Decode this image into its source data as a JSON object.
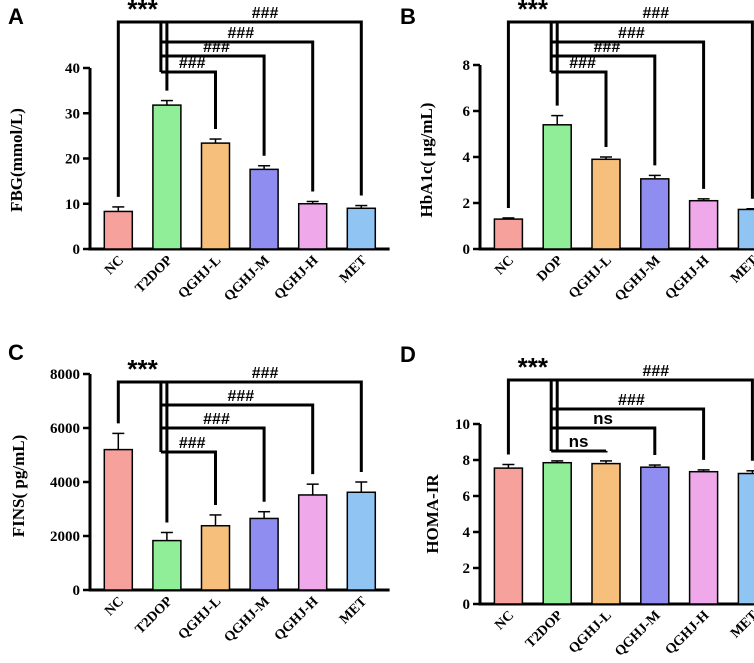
{
  "colors": {
    "NC": "#f6a19c",
    "T2DOP": "#90ee98",
    "QGHJ-L": "#f7bf7c",
    "QGHJ-M": "#8f8ef0",
    "QGHJ-H": "#efa8ea",
    "MET": "#90c4f3",
    "axis": "#000000"
  },
  "chart_data": [
    {
      "panel": "A",
      "type": "bar",
      "ylabel": "FBG(mmol/L)",
      "ylim": [
        0,
        40
      ],
      "yticks": [
        0,
        10,
        20,
        30,
        40
      ],
      "categories": [
        "NC",
        "T2DOP",
        "QGHJ-L",
        "QGHJ-M",
        "QGHJ-H",
        "MET"
      ],
      "values": [
        8.3,
        31.8,
        23.4,
        17.6,
        10.0,
        9.0
      ],
      "errors": [
        1.0,
        1.0,
        0.9,
        0.8,
        0.5,
        0.6
      ],
      "annotations": [
        {
          "text": "***",
          "from": 0,
          "to": 1
        },
        {
          "text": "###",
          "from": 1,
          "to": 2
        },
        {
          "text": "###",
          "from": 1,
          "to": 3
        },
        {
          "text": "###",
          "from": 1,
          "to": 4
        },
        {
          "text": "###",
          "from": 1,
          "to": 5
        }
      ]
    },
    {
      "panel": "B",
      "type": "bar",
      "ylabel": "HbA1c( μg/mL)",
      "ylim": [
        0,
        8
      ],
      "yticks": [
        0,
        2,
        4,
        6,
        8
      ],
      "categories": [
        "NC",
        "DOP",
        "QGHJ-L",
        "QGHJ-M",
        "QGHJ-H",
        "MET"
      ],
      "values": [
        1.3,
        5.4,
        3.9,
        3.05,
        2.1,
        1.72
      ],
      "errors": [
        0.05,
        0.4,
        0.1,
        0.15,
        0.08,
        0.03
      ],
      "annotations": [
        {
          "text": "***",
          "from": 0,
          "to": 1
        },
        {
          "text": "###",
          "from": 1,
          "to": 2
        },
        {
          "text": "###",
          "from": 1,
          "to": 3
        },
        {
          "text": "###",
          "from": 1,
          "to": 4
        },
        {
          "text": "###",
          "from": 1,
          "to": 5
        }
      ]
    },
    {
      "panel": "C",
      "type": "bar",
      "ylabel": "FINS( pg/mL)",
      "ylim": [
        0,
        8000
      ],
      "yticks": [
        0,
        2000,
        4000,
        6000,
        8000
      ],
      "categories": [
        "NC",
        "T2DOP",
        "QGHJ-L",
        "QGHJ-M",
        "QGHJ-H",
        "MET"
      ],
      "values": [
        5200,
        1830,
        2380,
        2650,
        3520,
        3620
      ],
      "errors": [
        600,
        300,
        400,
        250,
        400,
        380
      ],
      "annotations": [
        {
          "text": "***",
          "from": 0,
          "to": 1
        },
        {
          "text": "###",
          "from": 1,
          "to": 2
        },
        {
          "text": "###",
          "from": 1,
          "to": 3
        },
        {
          "text": "###",
          "from": 1,
          "to": 4
        },
        {
          "text": "###",
          "from": 1,
          "to": 5
        }
      ]
    },
    {
      "panel": "D",
      "type": "bar",
      "ylabel": "HOMA-IR",
      "ylim": [
        0,
        10
      ],
      "yticks": [
        0,
        2,
        4,
        6,
        8,
        10
      ],
      "categories": [
        "NC",
        "T2DOP",
        "QGHJ-L",
        "QGHJ-M",
        "QGHJ-H",
        "MET"
      ],
      "values": [
        7.55,
        7.85,
        7.8,
        7.6,
        7.35,
        7.25
      ],
      "errors": [
        0.2,
        0.1,
        0.15,
        0.12,
        0.1,
        0.15
      ],
      "annotations": [
        {
          "text": "***",
          "from": 0,
          "to": 1
        },
        {
          "text": "ns",
          "from": 1,
          "to": 2
        },
        {
          "text": "ns",
          "from": 1,
          "to": 3
        },
        {
          "text": "###",
          "from": 1,
          "to": 4
        },
        {
          "text": "###",
          "from": 1,
          "to": 5
        }
      ]
    }
  ]
}
